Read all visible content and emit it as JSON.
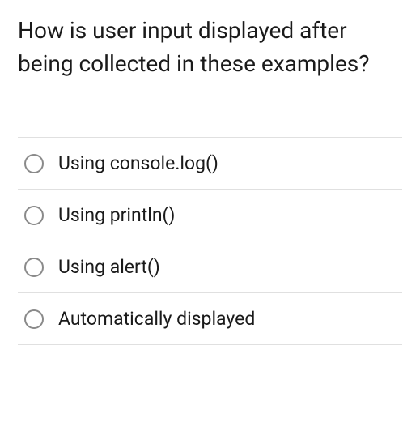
{
  "question": {
    "text": "How is user input displayed after being collected in these examples?",
    "text_color": "#1a1a1a",
    "font_size": 28
  },
  "options": [
    {
      "label": "Using console.log()",
      "selected": false
    },
    {
      "label": "Using println()",
      "selected": false
    },
    {
      "label": "Using alert()",
      "selected": false
    },
    {
      "label": "Automatically displayed",
      "selected": false
    }
  ],
  "styling": {
    "background_color": "#ffffff",
    "divider_color": "#e0e0e0",
    "radio_border_color": "#8a8a8a",
    "option_font_size": 23,
    "option_text_color": "#1a1a1a"
  }
}
